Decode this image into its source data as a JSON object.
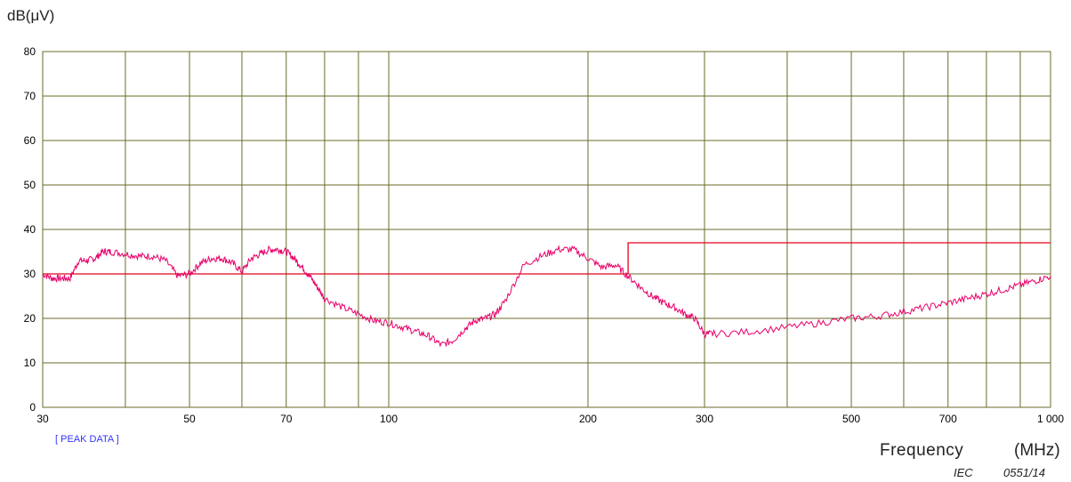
{
  "labels": {
    "y_unit": "dB(μV)",
    "peak_data": "[ PEAK DATA ]",
    "x_name": "Frequency",
    "x_unit": "(MHz)",
    "figure_id_prefix": "IEC",
    "figure_id": "0551/14"
  },
  "chart_data": {
    "type": "line",
    "x_scale": "log",
    "xlim": [
      30,
      1000
    ],
    "ylim": [
      0,
      80
    ],
    "grid": true,
    "x_ticks": [
      30,
      50,
      70,
      100,
      200,
      300,
      500,
      700,
      1000
    ],
    "x_tick_labels": [
      "30",
      "50",
      "70",
      "100",
      "200",
      "300",
      "500",
      "700",
      "1 000"
    ],
    "x_grid": [
      30,
      40,
      50,
      60,
      70,
      80,
      90,
      100,
      200,
      300,
      400,
      500,
      600,
      700,
      800,
      900,
      1000
    ],
    "y_ticks": [
      0,
      10,
      20,
      30,
      40,
      50,
      60,
      70,
      80
    ],
    "y_tick_labels": [
      "0",
      "10",
      "20",
      "30",
      "40",
      "50",
      "60",
      "70",
      "80"
    ],
    "series": [
      {
        "role": "limit",
        "color": "#e8001c",
        "step": true,
        "x": [
          30,
          230,
          230,
          1000
        ],
        "y": [
          30,
          30,
          37,
          37
        ]
      },
      {
        "role": "measurement",
        "color": "#e8006a",
        "x": [
          30,
          31,
          32,
          33,
          34,
          35,
          36,
          37,
          38,
          40,
          42,
          44,
          46,
          48,
          50,
          52,
          54,
          56,
          58,
          60,
          62,
          64,
          66,
          68,
          70,
          72,
          74,
          76,
          78,
          80,
          85,
          90,
          95,
          100,
          105,
          110,
          115,
          120,
          125,
          130,
          135,
          140,
          145,
          150,
          160,
          170,
          180,
          190,
          200,
          210,
          220,
          230,
          240,
          250,
          260,
          270,
          280,
          290,
          300,
          310,
          350,
          400,
          450,
          500,
          550,
          600,
          650,
          700,
          750,
          800,
          850,
          900,
          950,
          1000
        ],
        "y": [
          30,
          29,
          29,
          29,
          33,
          33,
          33.5,
          35,
          35,
          34.5,
          34,
          34,
          33,
          29.5,
          30,
          32.5,
          33.5,
          33.5,
          32.5,
          30.5,
          33.5,
          34.5,
          35.5,
          35.5,
          35,
          33.5,
          31.5,
          29.5,
          27,
          24.5,
          22.5,
          21,
          19.5,
          19,
          18,
          17,
          16,
          14,
          15,
          17.5,
          19.5,
          20,
          21,
          24,
          32,
          34,
          35.5,
          35.5,
          33.5,
          31.5,
          32,
          29.5,
          27,
          25,
          23.5,
          22.5,
          21,
          20,
          16.5,
          16.5,
          17,
          18,
          19,
          20,
          20.5,
          21.5,
          22.5,
          23.5,
          24.5,
          25.5,
          26.5,
          27.5,
          28.5,
          29.5
        ]
      }
    ]
  }
}
